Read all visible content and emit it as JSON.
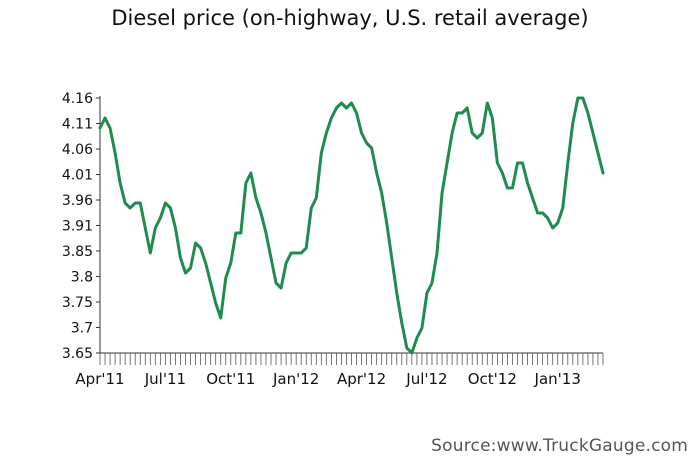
{
  "chart_data": {
    "type": "line",
    "title": "Diesel price (on-highway, U.S. retail average)",
    "xlabel": "",
    "ylabel": "",
    "ylim": [
      3.65,
      4.16
    ],
    "y_ticks": [
      "3.65",
      "3.7",
      "3.75",
      "3.8",
      "3.85",
      "3.91",
      "3.96",
      "4.01",
      "4.06",
      "4.11",
      "4.16"
    ],
    "x_tick_labels": [
      "Apr'11",
      "Jul'11",
      "Oct'11",
      "Jan'12",
      "Apr'12",
      "Jul'12",
      "Oct'12",
      "Jan'13"
    ],
    "grid": false,
    "legend": "none",
    "line_color": "#1e8c4e",
    "series": [
      {
        "values": [
          4.1,
          4.12,
          4.1,
          4.05,
          3.99,
          3.95,
          3.94,
          3.95,
          3.95,
          3.9,
          3.85,
          3.9,
          3.92,
          3.95,
          3.94,
          3.9,
          3.84,
          3.81,
          3.82,
          3.87,
          3.86,
          3.83,
          3.79,
          3.75,
          3.72,
          3.8,
          3.83,
          3.89,
          3.89,
          3.99,
          4.01,
          3.96,
          3.93,
          3.89,
          3.84,
          3.79,
          3.78,
          3.83,
          3.85,
          3.85,
          3.85,
          3.86,
          3.94,
          3.96,
          4.05,
          4.09,
          4.12,
          4.14,
          4.15,
          4.14,
          4.15,
          4.13,
          4.09,
          4.07,
          4.06,
          4.01,
          3.97,
          3.91,
          3.84,
          3.77,
          3.71,
          3.66,
          3.65,
          3.68,
          3.7,
          3.77,
          3.79,
          3.85,
          3.97,
          4.03,
          4.09,
          4.13,
          4.13,
          4.14,
          4.09,
          4.08,
          4.09,
          4.15,
          4.12,
          4.03,
          4.01,
          3.98,
          3.98,
          4.03,
          4.03,
          3.99,
          3.96,
          3.93,
          3.93,
          3.92,
          3.9,
          3.91,
          3.94,
          4.03,
          4.11,
          4.16,
          4.16,
          4.13,
          4.09,
          4.05,
          4.01
        ]
      }
    ]
  },
  "source": "Source:www.TruckGauge.com"
}
